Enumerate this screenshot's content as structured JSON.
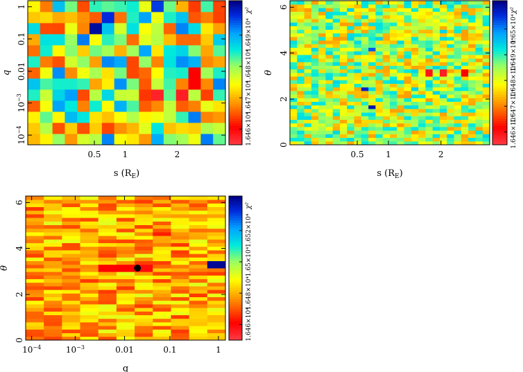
{
  "figure": {
    "panels": [
      {
        "xlabel_main": "s (R",
        "xlabel_sub": "E",
        "xlabel_close": ")",
        "ylabel": "q",
        "xticks": [
          "0.5",
          "1",
          "2"
        ],
        "yticks": [
          {
            "mant": "10",
            "exp": "−4"
          },
          {
            "mant": "10",
            "exp": "−3"
          },
          {
            "mant": "0.01",
            "exp": ""
          },
          {
            "mant": "0.1",
            "exp": ""
          },
          {
            "mant": "1",
            "exp": ""
          }
        ],
        "cbar_label": "χ²",
        "cbar_ticks": [
          "1.646×10⁴",
          "1.647×10⁴",
          "1.648×10⁴",
          "1.649×10⁴"
        ]
      },
      {
        "xlabel_main": "s (R",
        "xlabel_sub": "E",
        "xlabel_close": ")",
        "ylabel": "θ",
        "xticks": [
          "0.5",
          "1",
          "2"
        ],
        "yticks": [
          {
            "mant": "0",
            "exp": ""
          },
          {
            "mant": "2",
            "exp": ""
          },
          {
            "mant": "4",
            "exp": ""
          },
          {
            "mant": "6",
            "exp": ""
          }
        ],
        "cbar_label": "χ²",
        "cbar_ticks": [
          "1.646×10⁴",
          "1.647×10⁴",
          "1.648×10⁴",
          "1.649×10⁴",
          "1.65×10⁴"
        ]
      },
      {
        "xlabel_main": "q",
        "xlabel_sub": "",
        "xlabel_close": "",
        "ylabel": "θ",
        "xticks": [
          {
            "mant": "10",
            "exp": "−4"
          },
          {
            "mant": "10",
            "exp": "−3"
          },
          {
            "mant": "0.01",
            "exp": ""
          },
          {
            "mant": "0.1",
            "exp": ""
          },
          {
            "mant": "1",
            "exp": ""
          }
        ],
        "yticks": [
          "0",
          "2",
          "4",
          "6"
        ],
        "cbar_label": "χ²",
        "cbar_ticks": [
          "1.646×10⁴",
          "1.648×10⁴",
          "1.65×10⁴",
          "1.652×10⁴"
        ]
      }
    ]
  },
  "chart_data": [
    {
      "type": "heatmap",
      "x_quantity": "s (R_E)",
      "x_scale": "log",
      "x_range": [
        0.3,
        4.5
      ],
      "y_quantity": "q",
      "y_scale": "log",
      "y_range": [
        7e-05,
        1.5
      ],
      "nx": 16,
      "ny": 13,
      "colorbar": "χ² (1.646×10⁴ – 1.649×10⁴)",
      "colormap": "jet (red = low, blue = high)",
      "background_level": 0.5,
      "hotspots": [
        {
          "s": 0.75,
          "q": 0.28,
          "level": 0.97
        },
        {
          "s": 0.92,
          "q": 0.4,
          "level": 0.9
        },
        {
          "s": 1.9,
          "q": 0.8,
          "level": 0.88
        },
        {
          "s": 1.35,
          "q": 0.015,
          "level": 0.2
        },
        {
          "s": 1.8,
          "q": 0.003,
          "level": 0.05
        },
        {
          "s": 2.4,
          "q": 0.003,
          "level": 0.06
        },
        {
          "s": 2.8,
          "q": 0.007,
          "level": 0.12
        }
      ]
    },
    {
      "type": "heatmap",
      "x_quantity": "s (R_E)",
      "x_scale": "log",
      "x_range": [
        0.3,
        4.5
      ],
      "y_quantity": "θ",
      "y_scale": "linear",
      "y_range": [
        0,
        6.283
      ],
      "nx": 28,
      "ny": 40,
      "colorbar": "χ² (1.646×10⁴ – 1.65×10⁴)",
      "colormap": "jet (red = low, blue = high)",
      "background_level": 0.5,
      "hotspots": [
        {
          "s": 2.05,
          "theta": 3.14,
          "level": 0.08
        },
        {
          "s": 2.5,
          "theta": 3.14,
          "level": 0.06
        },
        {
          "s": 3.2,
          "theta": 3.14,
          "level": 0.12
        },
        {
          "s": 0.95,
          "theta": 1.6,
          "level": 0.95
        },
        {
          "s": 0.85,
          "theta": 2.5,
          "level": 0.92
        },
        {
          "s": 0.95,
          "theta": 4.1,
          "level": 0.85
        }
      ]
    },
    {
      "type": "heatmap",
      "x_quantity": "q",
      "x_scale": "log",
      "x_range": [
        6e-05,
        1.6
      ],
      "y_quantity": "θ",
      "y_scale": "linear",
      "y_range": [
        0,
        6.283
      ],
      "nx": 11,
      "ny": 40,
      "colorbar": "χ² (1.646×10⁴ – 1.652×10⁴)",
      "colormap": "jet (red = low, blue = high)",
      "background_level": 0.32,
      "hotspots": [
        {
          "q": 0.018,
          "theta": 3.14,
          "level": 0.1
        },
        {
          "q": 0.006,
          "theta": 3.14,
          "level": 0.12
        },
        {
          "q": 0.8,
          "theta": 3.3,
          "level": 0.98
        },
        {
          "q": 0.05,
          "theta": 4.7,
          "level": 0.15
        }
      ],
      "marker": {
        "q": 0.018,
        "theta": 3.14
      }
    }
  ]
}
